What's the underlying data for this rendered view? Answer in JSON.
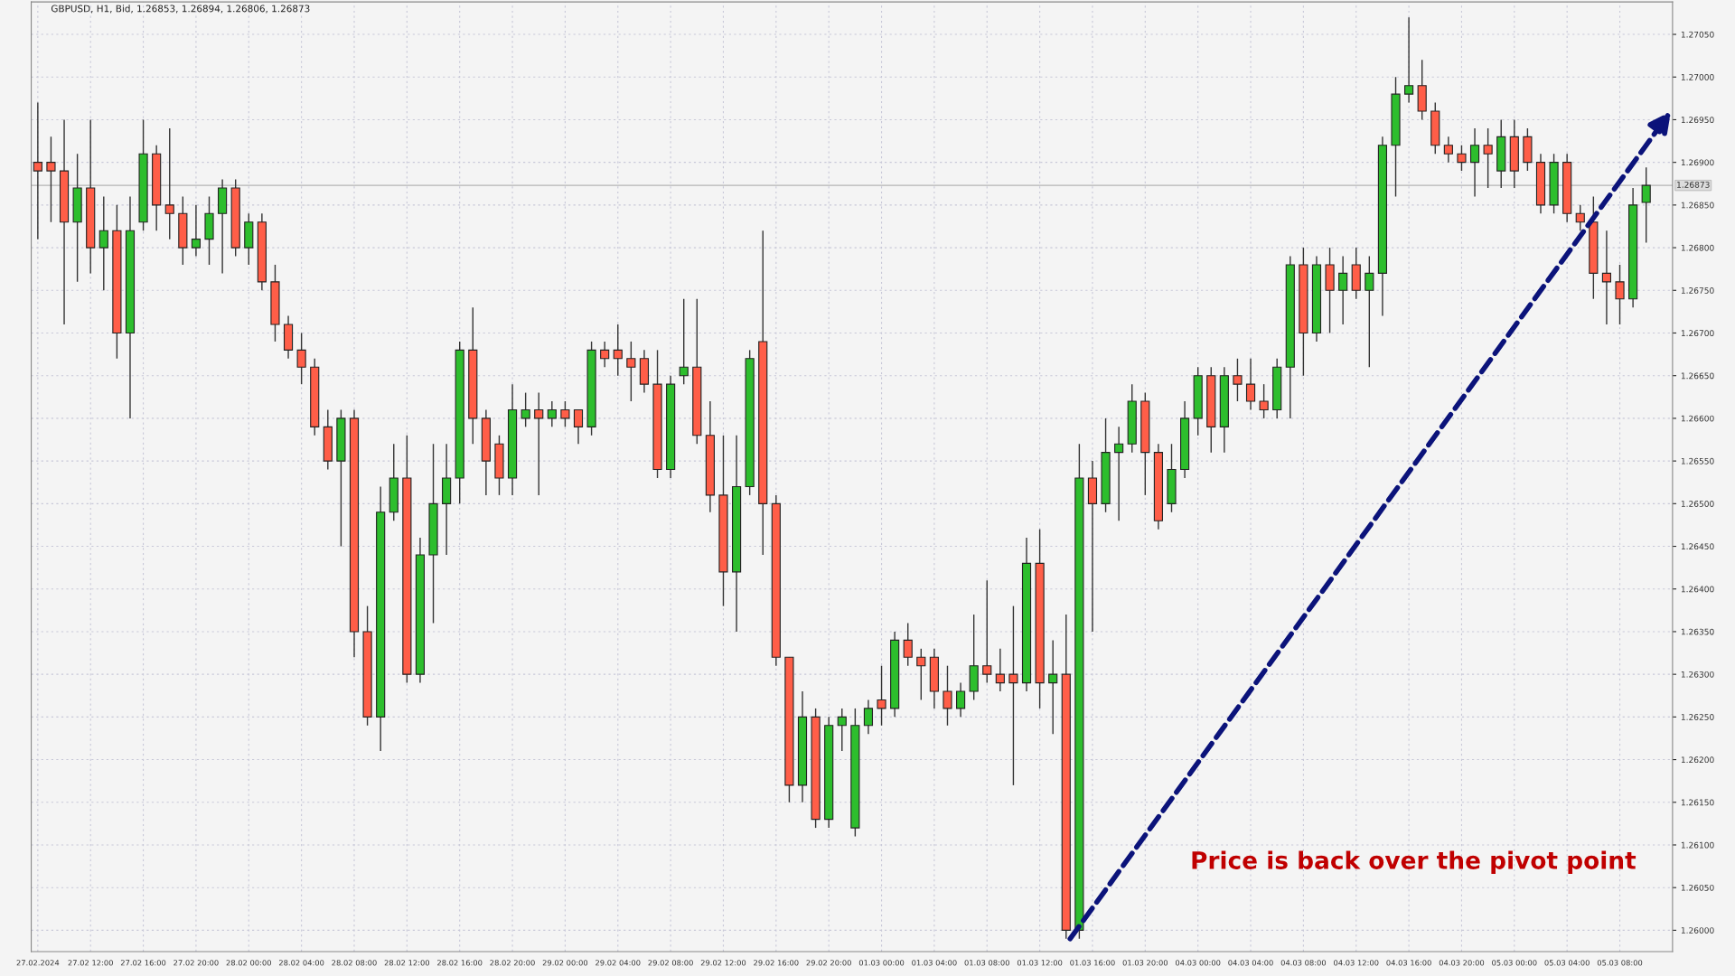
{
  "chart_data": {
    "type": "candlestick",
    "title": "GBPUSD, H1, Bid, 1.26853, 1.26894, 1.26806, 1.26873",
    "categories": [
      "27.02.2024",
      null,
      null,
      null,
      "27.02 12:00",
      null,
      null,
      null,
      "27.02 16:00",
      null,
      null,
      null,
      "27.02 20:00",
      null,
      null,
      null,
      "28.02 00:00",
      null,
      null,
      null,
      "28.02 04:00",
      null,
      null,
      null,
      "28.02 08:00",
      null,
      null,
      null,
      "28.02 12:00",
      null,
      null,
      null,
      "28.02 16:00",
      null,
      null,
      null,
      "28.02 20:00",
      null,
      null,
      null,
      "29.02 00:00",
      null,
      null,
      null,
      "29.02 04:00",
      null,
      null,
      null,
      "29.02 08:00",
      null,
      null,
      null,
      "29.02 12:00",
      null,
      null,
      null,
      "29.02 16:00",
      null,
      null,
      null,
      "29.02 20:00",
      null,
      null,
      null,
      "01.03 00:00",
      null,
      null,
      null,
      "01.03 04:00",
      null,
      null,
      null,
      "01.03 08:00",
      null,
      null,
      null,
      "01.03 12:00",
      null,
      null,
      null,
      "01.03 16:00",
      null,
      null,
      null,
      "01.03 20:00",
      null,
      null,
      null,
      "04.03 00:00",
      null,
      null,
      null,
      "04.03 04:00",
      null,
      null,
      null,
      "04.03 08:00",
      null,
      null,
      null,
      "04.03 12:00",
      null,
      null,
      null,
      "04.03 16:00",
      null,
      null,
      null,
      "04.03 20:00",
      null,
      null,
      null,
      "05.03 00:00",
      null,
      null,
      null,
      "05.03 04:00",
      null,
      null,
      null,
      "05.03 08:00",
      null,
      null
    ],
    "ohlc": [
      [
        1.269,
        1.2697,
        1.2681,
        1.2689
      ],
      [
        1.269,
        1.2693,
        1.2683,
        1.2689
      ],
      [
        1.2689,
        1.2695,
        1.2671,
        1.2683
      ],
      [
        1.2683,
        1.2691,
        1.2676,
        1.2687
      ],
      [
        1.2687,
        1.2695,
        1.2677,
        1.268
      ],
      [
        1.268,
        1.2686,
        1.2675,
        1.2682
      ],
      [
        1.2682,
        1.2685,
        1.2667,
        1.267
      ],
      [
        1.267,
        1.2686,
        1.266,
        1.2682
      ],
      [
        1.2683,
        1.2695,
        1.2682,
        1.2691
      ],
      [
        1.2691,
        1.2692,
        1.2682,
        1.2685
      ],
      [
        1.2685,
        1.2694,
        1.2681,
        1.2684
      ],
      [
        1.2684,
        1.2686,
        1.2678,
        1.268
      ],
      [
        1.268,
        1.2685,
        1.2679,
        1.2681
      ],
      [
        1.2681,
        1.2686,
        1.2678,
        1.2684
      ],
      [
        1.2684,
        1.2688,
        1.2677,
        1.2687
      ],
      [
        1.2687,
        1.2688,
        1.2679,
        1.268
      ],
      [
        1.268,
        1.2684,
        1.2678,
        1.2683
      ],
      [
        1.2683,
        1.2684,
        1.2675,
        1.2676
      ],
      [
        1.2676,
        1.2678,
        1.2669,
        1.2671
      ],
      [
        1.2671,
        1.2672,
        1.2667,
        1.2668
      ],
      [
        1.2668,
        1.267,
        1.2664,
        1.2666
      ],
      [
        1.2666,
        1.2667,
        1.2658,
        1.2659
      ],
      [
        1.2659,
        1.2661,
        1.2654,
        1.2655
      ],
      [
        1.2655,
        1.2661,
        1.2645,
        1.266
      ],
      [
        1.266,
        1.2661,
        1.2632,
        1.2635
      ],
      [
        1.2635,
        1.2638,
        1.2624,
        1.2625
      ],
      [
        1.2625,
        1.2652,
        1.2621,
        1.2649
      ],
      [
        1.2649,
        1.2657,
        1.2648,
        1.2653
      ],
      [
        1.2653,
        1.2658,
        1.2629,
        1.263
      ],
      [
        1.263,
        1.2646,
        1.2629,
        1.2644
      ],
      [
        1.2644,
        1.2657,
        1.2636,
        1.265
      ],
      [
        1.265,
        1.2657,
        1.2644,
        1.2653
      ],
      [
        1.2653,
        1.2669,
        1.265,
        1.2668
      ],
      [
        1.2668,
        1.2673,
        1.2657,
        1.266
      ],
      [
        1.266,
        1.2661,
        1.2651,
        1.2655
      ],
      [
        1.2657,
        1.2658,
        1.2651,
        1.2653
      ],
      [
        1.2653,
        1.2664,
        1.2651,
        1.2661
      ],
      [
        1.266,
        1.2663,
        1.2659,
        1.2661
      ],
      [
        1.2661,
        1.2663,
        1.2651,
        1.266
      ],
      [
        1.266,
        1.2662,
        1.2659,
        1.2661
      ],
      [
        1.2661,
        1.2662,
        1.2659,
        1.266
      ],
      [
        1.2661,
        1.2661,
        1.2657,
        1.2659
      ],
      [
        1.2659,
        1.2669,
        1.2658,
        1.2668
      ],
      [
        1.2668,
        1.2669,
        1.2666,
        1.2667
      ],
      [
        1.2668,
        1.2671,
        1.2665,
        1.2667
      ],
      [
        1.2667,
        1.2669,
        1.2662,
        1.2666
      ],
      [
        1.2667,
        1.2668,
        1.2663,
        1.2664
      ],
      [
        1.2664,
        1.2668,
        1.2653,
        1.2654
      ],
      [
        1.2654,
        1.2665,
        1.2653,
        1.2664
      ],
      [
        1.2665,
        1.2674,
        1.2664,
        1.2666
      ],
      [
        1.2666,
        1.2674,
        1.2657,
        1.2658
      ],
      [
        1.2658,
        1.2662,
        1.2649,
        1.2651
      ],
      [
        1.2651,
        1.2658,
        1.2638,
        1.2642
      ],
      [
        1.2642,
        1.2658,
        1.2635,
        1.2652
      ],
      [
        1.2652,
        1.2668,
        1.2651,
        1.2667
      ],
      [
        1.2669,
        1.2682,
        1.2644,
        1.265
      ],
      [
        1.265,
        1.2651,
        1.2631,
        1.2632
      ],
      [
        1.2632,
        1.2632,
        1.2615,
        1.2617
      ],
      [
        1.2617,
        1.2628,
        1.2615,
        1.2625
      ],
      [
        1.2625,
        1.2626,
        1.2612,
        1.2613
      ],
      [
        1.2613,
        1.2625,
        1.2612,
        1.2624
      ],
      [
        1.2624,
        1.2626,
        1.2621,
        1.2625
      ],
      [
        1.2612,
        1.2626,
        1.2611,
        1.2624
      ],
      [
        1.2624,
        1.2627,
        1.2623,
        1.2626
      ],
      [
        1.2627,
        1.2631,
        1.2624,
        1.2626
      ],
      [
        1.2626,
        1.2635,
        1.2625,
        1.2634
      ],
      [
        1.2634,
        1.2636,
        1.2631,
        1.2632
      ],
      [
        1.2632,
        1.2633,
        1.2627,
        1.2631
      ],
      [
        1.2632,
        1.2633,
        1.2626,
        1.2628
      ],
      [
        1.2628,
        1.2631,
        1.2624,
        1.2626
      ],
      [
        1.2626,
        1.2629,
        1.2625,
        1.2628
      ],
      [
        1.2628,
        1.2637,
        1.2627,
        1.2631
      ],
      [
        1.2631,
        1.2641,
        1.2629,
        1.263
      ],
      [
        1.263,
        1.2633,
        1.2628,
        1.2629
      ],
      [
        1.263,
        1.2638,
        1.2617,
        1.2629
      ],
      [
        1.2629,
        1.2646,
        1.2628,
        1.2643
      ],
      [
        1.2643,
        1.2647,
        1.2626,
        1.2629
      ],
      [
        1.2629,
        1.2634,
        1.2623,
        1.263
      ],
      [
        1.263,
        1.2637,
        1.2599,
        1.26
      ],
      [
        1.26,
        1.2657,
        1.2599,
        1.2653
      ],
      [
        1.2653,
        1.2655,
        1.2635,
        1.265
      ],
      [
        1.265,
        1.266,
        1.2649,
        1.2656
      ],
      [
        1.2656,
        1.2659,
        1.2648,
        1.2657
      ],
      [
        1.2657,
        1.2664,
        1.2656,
        1.2662
      ],
      [
        1.2662,
        1.2663,
        1.2651,
        1.2656
      ],
      [
        1.2656,
        1.2657,
        1.2647,
        1.2648
      ],
      [
        1.265,
        1.2657,
        1.2649,
        1.2654
      ],
      [
        1.2654,
        1.2662,
        1.2653,
        1.266
      ],
      [
        1.266,
        1.2666,
        1.2658,
        1.2665
      ],
      [
        1.2665,
        1.2666,
        1.2656,
        1.2659
      ],
      [
        1.2659,
        1.2666,
        1.2656,
        1.2665
      ],
      [
        1.2665,
        1.2667,
        1.2662,
        1.2664
      ],
      [
        1.2664,
        1.2667,
        1.2661,
        1.2662
      ],
      [
        1.2662,
        1.2664,
        1.266,
        1.2661
      ],
      [
        1.2661,
        1.2667,
        1.266,
        1.2666
      ],
      [
        1.2666,
        1.2679,
        1.266,
        1.2678
      ],
      [
        1.2678,
        1.268,
        1.2665,
        1.267
      ],
      [
        1.267,
        1.2679,
        1.2669,
        1.2678
      ],
      [
        1.2678,
        1.268,
        1.267,
        1.2675
      ],
      [
        1.2675,
        1.2679,
        1.2671,
        1.2677
      ],
      [
        1.2678,
        1.268,
        1.2674,
        1.2675
      ],
      [
        1.2675,
        1.2679,
        1.2666,
        1.2677
      ],
      [
        1.2677,
        1.2693,
        1.2672,
        1.2692
      ],
      [
        1.2692,
        1.27,
        1.2686,
        1.2698
      ],
      [
        1.2698,
        1.2707,
        1.2697,
        1.2699
      ],
      [
        1.2699,
        1.2702,
        1.2695,
        1.2696
      ],
      [
        1.2696,
        1.2697,
        1.2691,
        1.2692
      ],
      [
        1.2692,
        1.2693,
        1.269,
        1.2691
      ],
      [
        1.2691,
        1.2692,
        1.2689,
        1.269
      ],
      [
        1.269,
        1.2694,
        1.2686,
        1.2692
      ],
      [
        1.2692,
        1.2694,
        1.2687,
        1.2691
      ],
      [
        1.2689,
        1.2695,
        1.2687,
        1.2693
      ],
      [
        1.2693,
        1.2695,
        1.2687,
        1.2689
      ],
      [
        1.2693,
        1.2694,
        1.2689,
        1.269
      ],
      [
        1.269,
        1.2691,
        1.2684,
        1.2685
      ],
      [
        1.2685,
        1.2691,
        1.2684,
        1.269
      ],
      [
        1.269,
        1.2691,
        1.2683,
        1.2684
      ],
      [
        1.2684,
        1.2685,
        1.2682,
        1.2683
      ],
      [
        1.2683,
        1.2686,
        1.2674,
        1.2677
      ],
      [
        1.2677,
        1.2682,
        1.2671,
        1.2676
      ],
      [
        1.2676,
        1.2678,
        1.2671,
        1.2674
      ],
      [
        1.2674,
        1.2687,
        1.2673,
        1.2685
      ],
      [
        1.26853,
        1.26894,
        1.26806,
        1.26873
      ]
    ],
    "colors": [
      "#ff5e48",
      "#ff5e48",
      "#ff5e48",
      "#2dbe2d",
      "#ff5e48",
      "#2dbe2d",
      "#ff5e48",
      "#2dbe2d",
      "#2dbe2d",
      "#ff5e48",
      "#ff5e48",
      "#ff5e48",
      "#2dbe2d",
      "#2dbe2d",
      "#2dbe2d",
      "#ff5e48",
      "#2dbe2d",
      "#ff5e48",
      "#ff5e48",
      "#ff5e48",
      "#ff5e48",
      "#ff5e48",
      "#ff5e48",
      "#2dbe2d",
      "#ff5e48",
      "#ff5e48",
      "#2dbe2d",
      "#2dbe2d",
      "#ff5e48",
      "#2dbe2d",
      "#2dbe2d",
      "#2dbe2d",
      "#2dbe2d",
      "#ff5e48",
      "#ff5e48",
      "#ff5e48",
      "#2dbe2d",
      "#2dbe2d",
      "#ff5e48",
      "#2dbe2d",
      "#ff5e48",
      "#ff5e48",
      "#2dbe2d",
      "#ff5e48",
      "#ff5e48",
      "#ff5e48",
      "#ff5e48",
      "#ff5e48",
      "#2dbe2d",
      "#2dbe2d",
      "#ff5e48",
      "#ff5e48",
      "#ff5e48",
      "#2dbe2d",
      "#2dbe2d",
      "#ff5e48",
      "#ff5e48",
      "#ff5e48",
      "#2dbe2d",
      "#ff5e48",
      "#2dbe2d",
      "#2dbe2d",
      "#2dbe2d",
      "#2dbe2d",
      "#ff5e48",
      "#2dbe2d",
      "#ff5e48",
      "#ff5e48",
      "#ff5e48",
      "#ff5e48",
      "#2dbe2d",
      "#2dbe2d",
      "#ff5e48",
      "#ff5e48",
      "#ff5e48",
      "#2dbe2d",
      "#ff5e48",
      "#2dbe2d",
      "#ff5e48",
      "#2dbe2d",
      "#ff5e48",
      "#2dbe2d",
      "#2dbe2d",
      "#2dbe2d",
      "#ff5e48",
      "#ff5e48",
      "#2dbe2d",
      "#2dbe2d",
      "#2dbe2d",
      "#ff5e48",
      "#2dbe2d",
      "#ff5e48",
      "#ff5e48",
      "#ff5e48",
      "#2dbe2d",
      "#2dbe2d",
      "#ff5e48",
      "#2dbe2d",
      "#ff5e48",
      "#2dbe2d",
      "#ff5e48",
      "#2dbe2d",
      "#2dbe2d",
      "#2dbe2d",
      "#2dbe2d",
      "#ff5e48",
      "#ff5e48",
      "#ff5e48",
      "#ff5e48",
      "#2dbe2d",
      "#ff5e48",
      "#2dbe2d",
      "#ff5e48",
      "#ff5e48",
      "#ff5e48",
      "#2dbe2d",
      "#ff5e48",
      "#ff5e48",
      "#ff5e48",
      "#ff5e48",
      "#ff5e48",
      "#2dbe2d",
      "#2dbe2d"
    ],
    "ylim": [
      1.25975,
      1.27088
    ],
    "yticks": [
      {
        "value": 1.26,
        "label": "1.26000"
      },
      {
        "value": 1.2605,
        "label": "1.26050"
      },
      {
        "value": 1.261,
        "label": "1.26100"
      },
      {
        "value": 1.2615,
        "label": "1.26150"
      },
      {
        "value": 1.262,
        "label": "1.26200"
      },
      {
        "value": 1.2625,
        "label": "1.26250"
      },
      {
        "value": 1.263,
        "label": "1.26300"
      },
      {
        "value": 1.2635,
        "label": "1.26350"
      },
      {
        "value": 1.264,
        "label": "1.26400"
      },
      {
        "value": 1.2645,
        "label": "1.26450"
      },
      {
        "value": 1.265,
        "label": "1.26500"
      },
      {
        "value": 1.2655,
        "label": "1.26550"
      },
      {
        "value": 1.266,
        "label": "1.26600"
      },
      {
        "value": 1.2665,
        "label": "1.26650"
      },
      {
        "value": 1.267,
        "label": "1.26700"
      },
      {
        "value": 1.2675,
        "label": "1.26750"
      },
      {
        "value": 1.268,
        "label": "1.26800"
      },
      {
        "value": 1.2685,
        "label": "1.26850"
      },
      {
        "value": 1.269,
        "label": "1.26900"
      },
      {
        "value": 1.2695,
        "label": "1.26950"
      },
      {
        "value": 1.27,
        "label": "1.27000"
      },
      {
        "value": 1.2705,
        "label": "1.27050"
      }
    ],
    "ref_lines": [
      {
        "axis": "y",
        "value": 1.26873,
        "label": "1.26873",
        "color": "#b4b4b4"
      }
    ],
    "annotations": [
      "Price is back over the pivot point"
    ],
    "grid": true
  }
}
